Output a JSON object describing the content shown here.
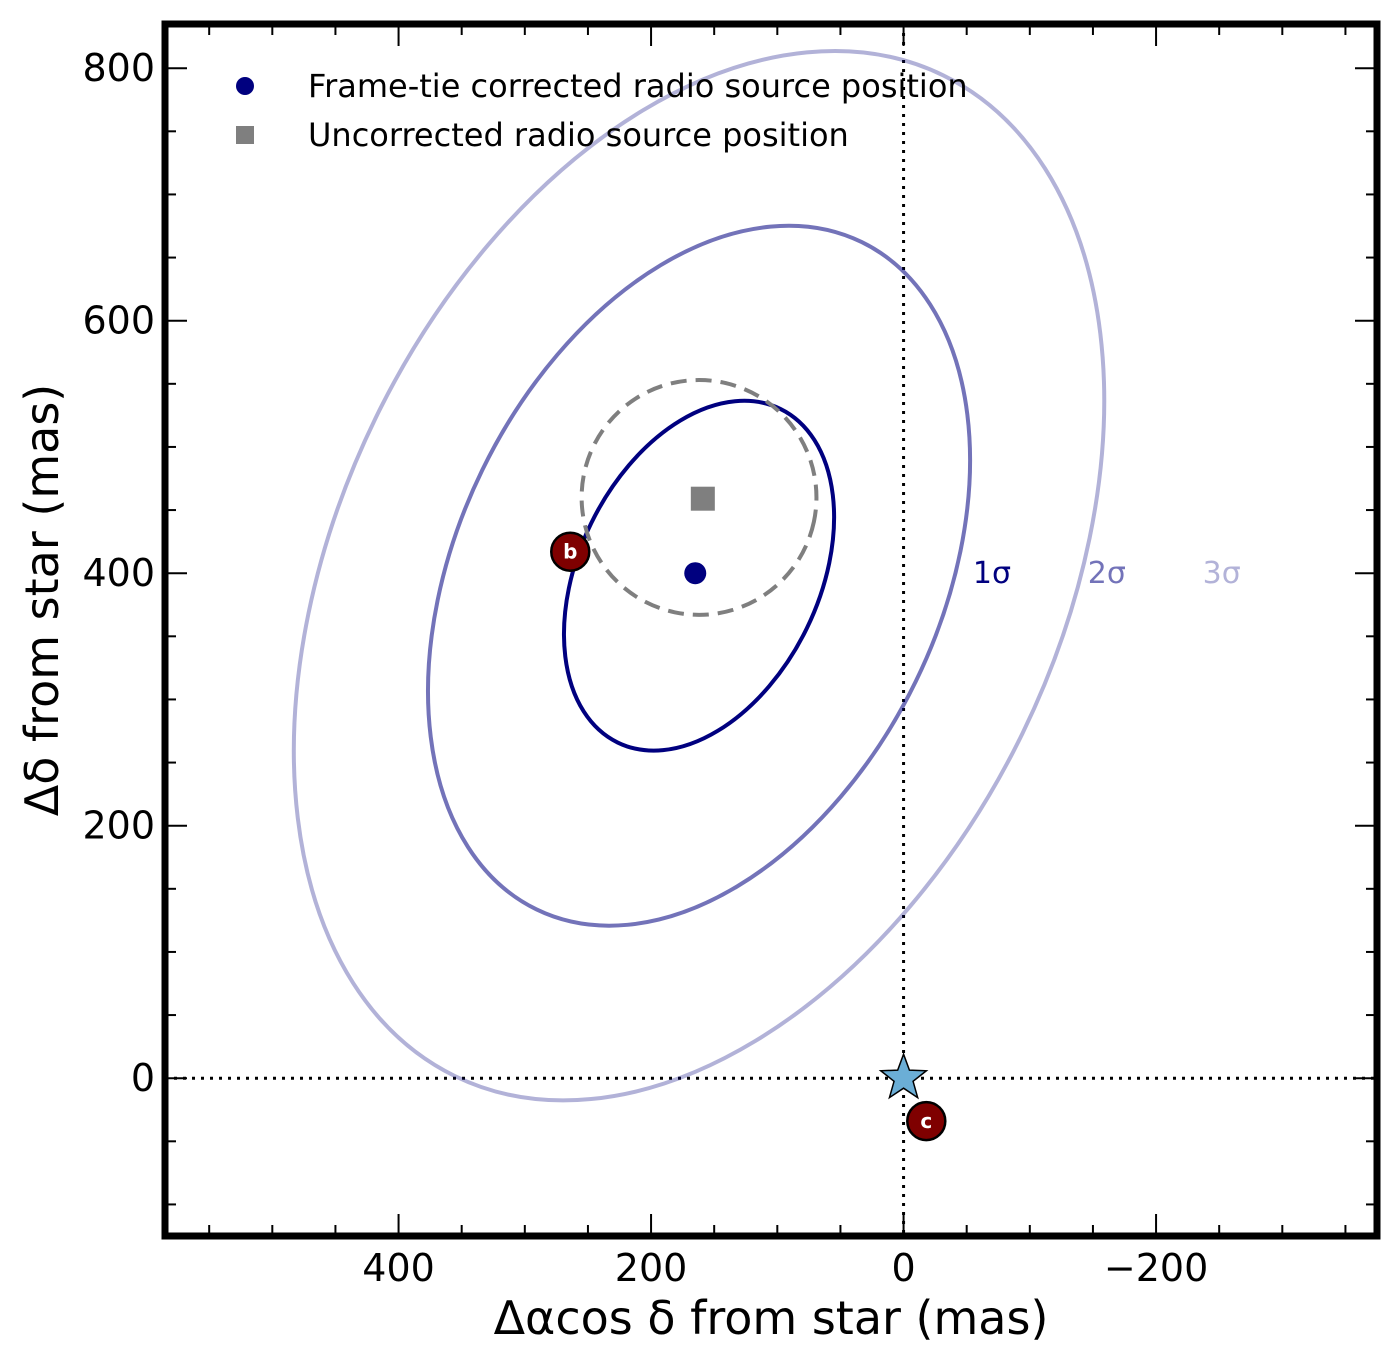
{
  "chart_data": {
    "type": "scatter",
    "xlabel": "Δαcos δ from star (mas)",
    "ylabel": "Δδ from star (mas)",
    "xlim": [
      585,
      -375
    ],
    "ylim": [
      -125,
      835
    ],
    "x_axis_inverted": true,
    "grid": false,
    "legend_placement": "top-left",
    "x_ticks": [
      {
        "value": 400,
        "label": "400"
      },
      {
        "value": 200,
        "label": "200"
      },
      {
        "value": 0,
        "label": "0"
      },
      {
        "value": -200,
        "label": "−200"
      }
    ],
    "y_ticks": [
      {
        "value": 0,
        "label": "0"
      },
      {
        "value": 200,
        "label": "200"
      },
      {
        "value": 400,
        "label": "400"
      },
      {
        "value": 600,
        "label": "600"
      },
      {
        "value": 800,
        "label": "800"
      }
    ],
    "legend": [
      {
        "label": "Frame-tie corrected radio source position",
        "marker": "circle",
        "color": "#00007f"
      },
      {
        "label": "Uncorrected radio source position",
        "marker": "square",
        "color": "#7f7f7f"
      }
    ],
    "points": {
      "corrected": {
        "x": 165,
        "y": 400,
        "color": "#00007f"
      },
      "uncorrected": {
        "x": 159,
        "y": 459,
        "color": "#7f7f7f"
      },
      "star": {
        "x": 0,
        "y": 0,
        "color": "#6baed6"
      }
    },
    "planets": [
      {
        "label": "b",
        "x": 264,
        "y": 417,
        "color": "#7f0000"
      },
      {
        "label": "c",
        "x": -18,
        "y": -34,
        "color": "#7f0000"
      }
    ],
    "contours": [
      {
        "label": "1σ",
        "cx": 162,
        "cy": 398,
        "rx": 95,
        "ry": 147,
        "rot_deg": 26,
        "color": "#00007f",
        "opacity": 1.0,
        "label_x": -70,
        "label_y": 400
      },
      {
        "label": "2σ",
        "cx": 162,
        "cy": 398,
        "rx": 191,
        "ry": 294,
        "rot_deg": 26,
        "color": "#00007f",
        "opacity": 0.55,
        "label_x": -161,
        "label_y": 400
      },
      {
        "label": "3σ",
        "cx": 162,
        "cy": 398,
        "rx": 285,
        "ry": 441,
        "rot_deg": 26,
        "color": "#00007f",
        "opacity": 0.3,
        "label_x": -252,
        "label_y": 400
      },
      {
        "label": "",
        "cx": 162,
        "cy": 460,
        "rx": 93,
        "ry": 93,
        "rot_deg": 12,
        "color": "#7f7f7f",
        "opacity": 1.0,
        "dashed": true
      }
    ],
    "reference_lines": [
      {
        "orientation": "vertical",
        "value": 0
      },
      {
        "orientation": "horizontal",
        "value": 0
      }
    ]
  }
}
